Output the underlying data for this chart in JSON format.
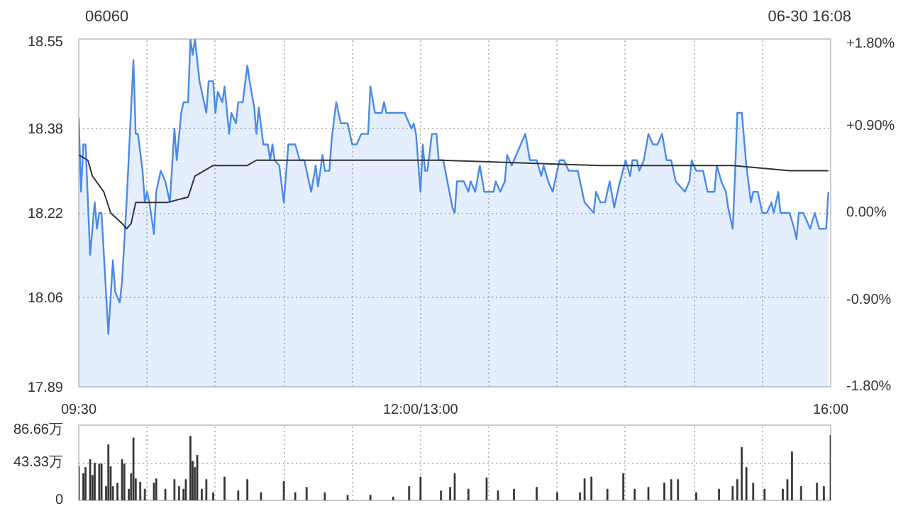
{
  "chart_data": [
    {
      "type": "area",
      "title": "06060",
      "annotations": [
        "06-30 16:08"
      ],
      "categories": [
        "09:30",
        null,
        null,
        null,
        null,
        null,
        null,
        null,
        null,
        null,
        null,
        null,
        null,
        null,
        null,
        null,
        null,
        null,
        null,
        null,
        null,
        null,
        null,
        null,
        null,
        null,
        null,
        null,
        null,
        null,
        null,
        null,
        null,
        null,
        null,
        null,
        null,
        null,
        null,
        null,
        null,
        null,
        null,
        null,
        null,
        null,
        null,
        null,
        null,
        null,
        null,
        null,
        null,
        null,
        null,
        null,
        null,
        null,
        null,
        null,
        null,
        null,
        null,
        null,
        null,
        null,
        null,
        null,
        null,
        null,
        null,
        null,
        null,
        null,
        null,
        null,
        null,
        null,
        null,
        null,
        null,
        null,
        null,
        null,
        null,
        null,
        null,
        null,
        null,
        null,
        null,
        null,
        null,
        null,
        null,
        null,
        null,
        null,
        null,
        null,
        null,
        null,
        null,
        null,
        null,
        null,
        null,
        null,
        null,
        null,
        null,
        null,
        null,
        null,
        null,
        null,
        null,
        null,
        null,
        null,
        null,
        null,
        null,
        null,
        null,
        null,
        null,
        null,
        null,
        null,
        null,
        null,
        null,
        null,
        null,
        null,
        null,
        null,
        null,
        null,
        null,
        null,
        null,
        null,
        null,
        null,
        null,
        null,
        null,
        null,
        "12:00/13:00",
        null,
        null,
        null,
        null,
        null,
        null,
        null,
        null,
        null,
        null,
        null,
        null,
        null,
        null,
        null,
        null,
        null,
        null,
        null,
        null,
        null,
        null,
        null,
        null,
        null,
        null,
        null,
        null,
        null,
        null,
        null,
        null,
        null,
        null,
        null,
        null,
        null,
        null,
        null,
        null,
        null,
        null,
        null,
        null,
        null,
        null,
        null,
        null,
        null,
        null,
        null,
        null,
        null,
        null,
        null,
        null,
        null,
        null,
        null,
        null,
        null,
        null,
        null,
        null,
        null,
        null,
        null,
        null,
        null,
        null,
        null,
        null,
        null,
        null,
        null,
        null,
        null,
        null,
        null,
        null,
        null,
        null,
        null,
        null,
        null,
        null,
        null,
        null,
        null,
        null,
        null,
        null,
        null,
        null,
        null,
        null,
        null,
        null,
        null,
        null,
        null,
        null,
        null,
        null,
        null,
        null,
        null,
        null,
        null,
        null,
        null,
        null,
        null,
        null,
        null,
        null,
        null,
        null,
        null,
        null,
        null,
        null,
        null,
        null,
        null,
        null,
        null,
        null,
        null,
        null,
        null,
        null,
        null,
        null,
        null,
        null,
        null,
        null,
        null,
        null,
        null,
        null,
        null,
        null,
        null,
        null,
        null,
        null,
        null,
        null,
        null,
        null,
        null,
        null,
        null,
        null,
        null,
        null,
        null,
        null,
        null,
        null,
        null,
        null,
        null,
        null,
        null,
        null,
        null,
        null,
        null,
        null,
        null,
        null,
        null,
        null,
        null,
        null,
        null,
        "16:00"
      ],
      "ylim": [
        17.89,
        18.55
      ],
      "yticks": [
        17.89,
        18.06,
        18.22,
        18.38,
        18.55
      ],
      "y2lim": [
        -1.8,
        1.8
      ],
      "y2ticks": [
        {
          "value": 1.8,
          "label": "+1.80%"
        },
        {
          "value": 0.9,
          "label": "+0.90%"
        },
        {
          "value": 0,
          "label": "0.00%"
        },
        {
          "value": -0.9,
          "label": "-0.90%"
        },
        {
          "value": -1.8,
          "label": "-1.80%"
        }
      ],
      "grid": true,
      "series": [
        {
          "type": "area",
          "color": "#4a8ae8",
          "values": [
            18.4,
            18.26,
            18.35,
            18.35,
            null,
            18.14,
            null,
            18.24,
            18.19,
            18.22,
            18.22,
            null,
            null,
            17.99,
            null,
            18.13,
            18.07,
            null,
            18.05,
            18.09,
            null,
            18.24,
            null,
            null,
            18.51,
            18.37,
            18.37,
            null,
            18.3,
            18.24,
            18.26,
            18.24,
            null,
            18.18,
            18.26,
            null,
            18.3,
            null,
            18.28,
            null,
            18.24,
            null,
            18.38,
            18.32,
            null,
            18.41,
            18.43,
            null,
            18.43,
            18.55,
            18.52,
            18.55,
            null,
            18.47,
            18.45,
            null,
            18.41,
            18.47,
            null,
            18.47,
            18.41,
            18.45,
            null,
            18.43,
            18.46,
            null,
            18.37,
            18.41,
            null,
            18.39,
            18.43,
            null,
            18.43,
            null,
            18.5,
            18.47,
            null,
            18.42,
            18.37,
            18.42,
            null,
            18.35,
            null,
            18.35,
            18.32,
            18.35,
            18.32,
            null,
            18.31,
            null,
            18.24,
            null,
            18.35,
            null,
            null,
            18.35,
            null,
            18.32,
            null,
            18.32,
            null,
            18.28,
            18.26,
            null,
            18.31,
            18.27,
            null,
            18.33,
            18.3,
            null,
            18.3,
            18.36,
            null,
            18.43,
            null,
            18.39,
            null,
            null,
            18.39,
            null,
            18.35,
            18.35,
            18.35,
            null,
            18.37,
            null,
            null,
            18.37,
            18.46,
            null,
            18.41,
            null,
            null,
            18.41,
            18.43,
            18.41,
            null,
            null,
            null,
            null,
            null,
            null,
            null,
            18.41,
            null,
            18.39,
            18.38,
            18.39,
            18.37,
            null,
            18.26,
            18.35,
            18.3,
            18.3,
            null,
            18.37,
            null,
            18.37,
            18.32,
            null,
            18.32,
            null,
            null,
            null,
            18.23,
            18.22,
            18.28,
            null,
            null,
            18.28,
            null,
            18.26,
            18.28,
            null,
            18.26,
            null,
            18.31,
            null,
            18.26,
            null,
            null,
            null,
            18.26,
            18.28,
            null,
            18.26,
            null,
            18.28,
            18.33,
            null,
            18.31,
            null,
            18.33,
            null,
            18.35,
            null,
            18.37,
            null,
            18.32,
            null,
            null,
            18.32,
            null,
            18.29,
            18.31,
            null,
            18.28,
            null,
            18.26,
            null,
            null,
            18.32,
            null,
            18.32,
            null,
            18.3,
            null,
            null,
            null,
            18.3,
            null,
            null,
            18.24,
            null,
            18.23,
            null,
            18.22,
            18.26,
            null,
            18.24,
            null,
            18.24,
            null,
            18.28,
            null,
            18.23,
            null,
            18.27,
            null,
            null,
            18.32,
            null,
            18.29,
            18.32,
            null,
            18.32,
            18.3,
            null,
            18.32,
            null,
            18.37,
            null,
            18.35,
            null,
            18.35,
            null,
            18.37,
            null,
            18.32,
            null,
            18.32,
            null,
            18.28,
            null,
            null,
            null,
            18.26,
            null,
            18.28,
            18.32,
            null,
            18.3,
            null,
            null,
            18.3,
            null,
            18.26,
            null,
            null,
            18.26,
            18.31,
            null,
            18.28,
            null,
            18.26,
            18.23,
            null,
            18.19,
            18.29,
            18.41,
            null,
            18.41,
            null,
            18.31,
            null,
            18.24,
            18.26,
            null,
            18.26,
            null,
            18.22,
            null,
            18.22,
            null,
            18.24,
            18.22,
            null,
            18.26,
            18.22,
            null,
            null,
            null,
            18.22,
            null,
            18.19,
            18.17,
            18.22,
            null,
            18.22,
            null,
            null,
            18.19,
            null,
            18.22,
            null,
            18.19,
            null,
            null,
            18.19,
            18.26,
            null
          ]
        },
        {
          "type": "line",
          "color": "#333333",
          "values": [
            18.33,
            null,
            null,
            null,
            18.32,
            null,
            18.29,
            null,
            null,
            null,
            null,
            18.26,
            null,
            null,
            18.22,
            null,
            null,
            null,
            null,
            18.2,
            null,
            18.19,
            null,
            18.2,
            null,
            18.24,
            null,
            null,
            18.24,
            null,
            null,
            null,
            null,
            null,
            null,
            null,
            null,
            null,
            null,
            18.24,
            null,
            null,
            null,
            null,
            null,
            null,
            null,
            null,
            18.25,
            null,
            null,
            18.29,
            null,
            null,
            null,
            null,
            null,
            null,
            null,
            18.31,
            null,
            null,
            null,
            null,
            null,
            null,
            null,
            null,
            null,
            null,
            null,
            null,
            null,
            null,
            18.31,
            null,
            null,
            null,
            18.32,
            null,
            null,
            null,
            null,
            null,
            null,
            null,
            null,
            null,
            null,
            null,
            null,
            null,
            null,
            null,
            null,
            null,
            null,
            null,
            null,
            null,
            null,
            18.32,
            null,
            null,
            null,
            null,
            null,
            null,
            null,
            null,
            null,
            null,
            null,
            null,
            null,
            null,
            null,
            null,
            null,
            null,
            null,
            null,
            null,
            null,
            null,
            null,
            null,
            null,
            null,
            null,
            null,
            null,
            null,
            null,
            null,
            null,
            null,
            null,
            null,
            null,
            null,
            null,
            null,
            null,
            null,
            null,
            null,
            null,
            null,
            null,
            null,
            null,
            null,
            null,
            null,
            null,
            null,
            null,
            null,
            18.32,
            null,
            null,
            null,
            null,
            null,
            null,
            null,
            null,
            null,
            null,
            null,
            null,
            null,
            null,
            null,
            null,
            null,
            null,
            null,
            null,
            null,
            null,
            null,
            null,
            null,
            null,
            null,
            null,
            null,
            null,
            null,
            null,
            null,
            null,
            null,
            null,
            null,
            null,
            null,
            null,
            null,
            null,
            null,
            null,
            null,
            null,
            null,
            null,
            null,
            null,
            null,
            null,
            null,
            null,
            null,
            null,
            null,
            null,
            null,
            null,
            null,
            null,
            null,
            null,
            null,
            null,
            null,
            null,
            null,
            18.31,
            null,
            null,
            null,
            null,
            null,
            null,
            null,
            null,
            null,
            null,
            null,
            null,
            null,
            null,
            null,
            null,
            null,
            null,
            null,
            null,
            null,
            null,
            null,
            null,
            null,
            null,
            null,
            null,
            null,
            null,
            null,
            null,
            null,
            null,
            null,
            null,
            null,
            18.31,
            null,
            null,
            null,
            null,
            null,
            null,
            null,
            null,
            null,
            null,
            null,
            null,
            null,
            null,
            null,
            null,
            null,
            null,
            null,
            18.31,
            null,
            null,
            null,
            null,
            null,
            null,
            null,
            null,
            null,
            null,
            null,
            null,
            null,
            null,
            null,
            null,
            null,
            null,
            null,
            null,
            null,
            null,
            null,
            null,
            18.3,
            null,
            null,
            null,
            null,
            null,
            null,
            null,
            null,
            null,
            null,
            null,
            null,
            null,
            null,
            null,
            null,
            18.3,
            null
          ]
        }
      ]
    },
    {
      "type": "bar",
      "color": "#333333",
      "tick_labels": "y",
      "grid": true,
      "categories": [
        null,
        null,
        null,
        null,
        null,
        null,
        null,
        null,
        null,
        null,
        null,
        null,
        null,
        null,
        null,
        null,
        null,
        null,
        null,
        null,
        null,
        null,
        null,
        null,
        null,
        null,
        null,
        null,
        null,
        null,
        null,
        null,
        null,
        null,
        null,
        null,
        null,
        null,
        null,
        null,
        null,
        null,
        null,
        null,
        null,
        null,
        null,
        null,
        null,
        null,
        null,
        null,
        null,
        null,
        null,
        null,
        null,
        null,
        null,
        null,
        null,
        null,
        null,
        null,
        null,
        null,
        null,
        null,
        null,
        null,
        null,
        null,
        null,
        null,
        null,
        null,
        null,
        null,
        null,
        null,
        null,
        null,
        null,
        null,
        null,
        null,
        null,
        null,
        null,
        null,
        null,
        null,
        null,
        null,
        null,
        null,
        null,
        null,
        null,
        null,
        null,
        null,
        null,
        null,
        null,
        null,
        null,
        null,
        null,
        null,
        null,
        null,
        null,
        null,
        null,
        null,
        null,
        null,
        null,
        null,
        null,
        null,
        null,
        null,
        null,
        null,
        null,
        null,
        null,
        null,
        null,
        null,
        null,
        null,
        null,
        null,
        null,
        null,
        null,
        null,
        null,
        null,
        null,
        null,
        null,
        null,
        null,
        null,
        null,
        null,
        null,
        null,
        null,
        null,
        null,
        null,
        null,
        null,
        null,
        null,
        null,
        null,
        null,
        null,
        null,
        null,
        null,
        null,
        null,
        null,
        null,
        null,
        null,
        null,
        null,
        null,
        null,
        null,
        null,
        null,
        null,
        null,
        null,
        null,
        null,
        null,
        null,
        null,
        null,
        null,
        null,
        null,
        null,
        null,
        null,
        null,
        null,
        null,
        null,
        null,
        null,
        null,
        null,
        null,
        null,
        null,
        null,
        null,
        null,
        null,
        null,
        null,
        null,
        null,
        null,
        null,
        null,
        null,
        null,
        null,
        null,
        null,
        null,
        null,
        null,
        null,
        null,
        null,
        null,
        null,
        null,
        null,
        null,
        null,
        null,
        null,
        null,
        null,
        null,
        null,
        null,
        null,
        null,
        null,
        null,
        null,
        null,
        null,
        null,
        null,
        null,
        null,
        null,
        null,
        null,
        null,
        null,
        null,
        null,
        null,
        null,
        null,
        null,
        null,
        null,
        null,
        null,
        null,
        null,
        null,
        null,
        null,
        null,
        null,
        null,
        null,
        null,
        null,
        null,
        null,
        null,
        null,
        null,
        null,
        null,
        null,
        null,
        null,
        null,
        null,
        null,
        null,
        null,
        null,
        null,
        null,
        null,
        null,
        null,
        null,
        null,
        null,
        null,
        null,
        null,
        null,
        null,
        null,
        null,
        null,
        null,
        null,
        null,
        null,
        null,
        null,
        null,
        null,
        null,
        null,
        null,
        null,
        null,
        null,
        null,
        null,
        null,
        null,
        null,
        null,
        null
      ],
      "ylim": [
        0,
        86.66
      ],
      "yticks": [
        {
          "value": 0,
          "label": "0"
        },
        {
          "value": 43.33,
          "label": "43.33万"
        },
        {
          "value": 86.66,
          "label": "86.66万"
        }
      ],
      "values": [
        39,
        null,
        31,
        38,
        null,
        47,
        29,
        43,
        null,
        42,
        42,
        null,
        16,
        64,
        39,
        16,
        null,
        20,
        null,
        47,
        42,
        null,
        13,
        31,
        72,
        25,
        null,
        21,
        null,
        13,
        null,
        null,
        null,
        20,
        25,
        null,
        null,
        null,
        13,
        null,
        null,
        null,
        24,
        null,
        16,
        null,
        13,
        24,
        null,
        74,
        45,
        38,
        52,
        null,
        13,
        null,
        24,
        null,
        null,
        9,
        null,
        null,
        null,
        null,
        27,
        null,
        null,
        null,
        null,
        null,
        11,
        null,
        null,
        null,
        24,
        null,
        null,
        null,
        null,
        null,
        9,
        null,
        null,
        null,
        null,
        null,
        null,
        null,
        null,
        null,
        22,
        null,
        null,
        null,
        null,
        9,
        null,
        null,
        null,
        null,
        15,
        null,
        null,
        null,
        null,
        null,
        null,
        null,
        9,
        null,
        null,
        null,
        null,
        null,
        null,
        null,
        null,
        null,
        6,
        null,
        null,
        null,
        null,
        null,
        null,
        null,
        null,
        null,
        6,
        null,
        null,
        null,
        null,
        null,
        null,
        null,
        null,
        null,
        4,
        null,
        null,
        null,
        null,
        null,
        null,
        16,
        null,
        null,
        null,
        null,
        27,
        null,
        null,
        null,
        null,
        null,
        null,
        null,
        null,
        11,
        null,
        null,
        null,
        15,
        null,
        31,
        null,
        null,
        null,
        null,
        null,
        13,
        null,
        null,
        null,
        null,
        null,
        null,
        null,
        26,
        null,
        null,
        null,
        null,
        11,
        null,
        null,
        null,
        null,
        null,
        null,
        13,
        null,
        null,
        null,
        null,
        null,
        null,
        null,
        null,
        null,
        15,
        null,
        null,
        null,
        null,
        null,
        null,
        null,
        null,
        9,
        null,
        null,
        null,
        null,
        null,
        null,
        null,
        null,
        null,
        9,
        null,
        25,
        null,
        null,
        27,
        null,
        null,
        null,
        null,
        null,
        null,
        13,
        null,
        null,
        null,
        null,
        null,
        null,
        31,
        null,
        null,
        null,
        null,
        13,
        null,
        null,
        null,
        null,
        null,
        15,
        null,
        null,
        null,
        null,
        null,
        null,
        20,
        null,
        null,
        24,
        null,
        null,
        24,
        null,
        null,
        null,
        null,
        null,
        null,
        null,
        9,
        null,
        null,
        null,
        null,
        null,
        null,
        null,
        null,
        null,
        13,
        null,
        null,
        null,
        null,
        null,
        16,
        null,
        24,
        null,
        61,
        null,
        38,
        null,
        null,
        20,
        null,
        null,
        null,
        null,
        13,
        null,
        null,
        null,
        null,
        null,
        null,
        null,
        13,
        null,
        24,
        null,
        56,
        null,
        null,
        null,
        16,
        null,
        null,
        null,
        null,
        null,
        null,
        20,
        null,
        null,
        16,
        null,
        null,
        75
      ]
    }
  ]
}
